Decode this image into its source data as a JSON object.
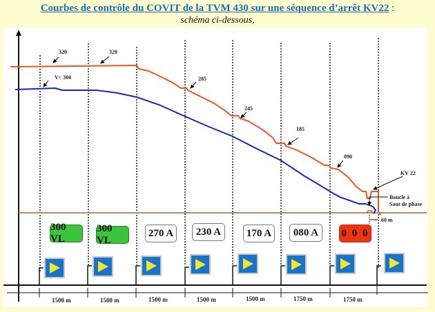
{
  "header": {
    "title": "Courbes de contrôle du COVIT de la TVM 430 sur une séquence d’arrêt KV22",
    "title_suffix": " :",
    "subtitle": "schéma ci-dessous,"
  },
  "colors": {
    "background": "#fffdd0",
    "title": "#1a6fb0",
    "control_curve": "#ee5522",
    "speed_curve": "#1a22cc",
    "track_line": "#b07a50",
    "box_green": "#3cc43c",
    "box_red": "#ee3311",
    "sign_blue": "#1a73c8",
    "sign_yellow": "#f2e62a"
  },
  "curve_labels": {
    "l320a": "320",
    "l320b": "320",
    "v300": "V< 300",
    "l285": "285",
    "l245": "245",
    "l185": "185",
    "l090": "090",
    "kv22": "KV 22",
    "boucle1": "Boucle à",
    "boucle2": "Saut de phase",
    "d60": "60 m"
  },
  "cab_signals": [
    {
      "label": "300 VL",
      "style": "green"
    },
    {
      "label": "300 VL",
      "style": "green"
    },
    {
      "label": "270 A",
      "style": "white"
    },
    {
      "label": "230 A",
      "style": "white"
    },
    {
      "label": "170 A",
      "style": "white"
    },
    {
      "label": "080 A",
      "style": "white"
    },
    {
      "label": "0 0 0",
      "style": "red"
    }
  ],
  "block_signs": [
    "repère",
    "repère",
    "repère",
    "repère",
    "repère",
    "repère",
    "repère",
    "repère"
  ],
  "distances": [
    "1500 m",
    "1500 m",
    "1500 m",
    "1500 m",
    "1500 m",
    "1750 m",
    "1750 m"
  ]
}
